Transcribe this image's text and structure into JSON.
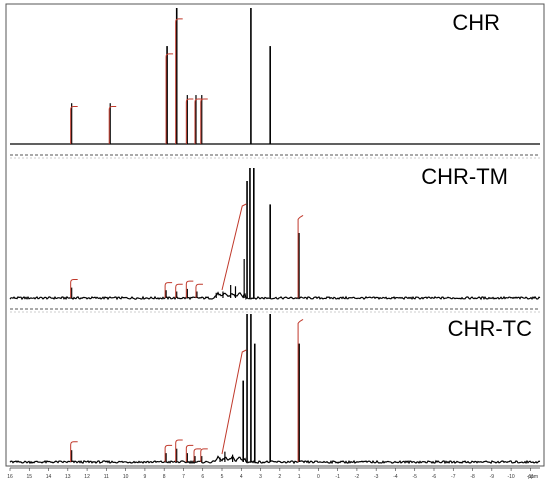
{
  "chart_data": [
    {
      "type": "line",
      "title": "CHR",
      "xlabel": "ppm",
      "xlim": [
        16,
        -11.5
      ],
      "x_ticks": [
        "16",
        "15",
        "14",
        "13",
        "12",
        "11",
        "10",
        "9",
        "8",
        "7",
        "6",
        "5",
        "4",
        "3",
        "2",
        "1",
        "0",
        "-1",
        "-2",
        "-3",
        "-4",
        "-5",
        "-6",
        "-7",
        "-8",
        "-9",
        "-10",
        "-11"
      ],
      "series": [
        {
          "peaks": [
            {
              "ppm": 12.8,
              "height": 0.3
            },
            {
              "ppm": 10.8,
              "height": 0.3
            },
            {
              "ppm": 7.85,
              "height": 0.72
            },
            {
              "ppm": 7.35,
              "height": 1.0
            },
            {
              "ppm": 6.8,
              "height": 0.36
            },
            {
              "ppm": 6.35,
              "height": 0.36
            },
            {
              "ppm": 6.05,
              "height": 0.36
            },
            {
              "ppm": 3.5,
              "height": 1.0
            },
            {
              "ppm": 2.5,
              "height": 0.72
            }
          ]
        }
      ],
      "color": "#000000",
      "integral_color": "#c0392b"
    },
    {
      "type": "line",
      "title": "CHR-TM",
      "xlabel": "ppm",
      "xlim": [
        16,
        -11.5
      ],
      "series": [
        {
          "peaks": [
            {
              "ppm": 12.8,
              "height": 0.08
            },
            {
              "ppm": 7.9,
              "height": 0.06
            },
            {
              "ppm": 7.35,
              "height": 0.05
            },
            {
              "ppm": 6.8,
              "height": 0.07
            },
            {
              "ppm": 6.3,
              "height": 0.05
            },
            {
              "ppm": 5.3,
              "height": 0.04
            },
            {
              "ppm": 4.95,
              "height": 0.05
            },
            {
              "ppm": 4.55,
              "height": 0.1
            },
            {
              "ppm": 4.3,
              "height": 0.09
            },
            {
              "ppm": 3.85,
              "height": 0.3
            },
            {
              "ppm": 3.7,
              "height": 0.9
            },
            {
              "ppm": 3.55,
              "height": 1.0
            },
            {
              "ppm": 3.35,
              "height": 1.0
            },
            {
              "ppm": 2.5,
              "height": 0.72
            },
            {
              "ppm": 1.0,
              "height": 0.5
            }
          ]
        }
      ],
      "color": "#000000",
      "integral_color": "#c0392b"
    },
    {
      "type": "line",
      "title": "CHR-TC",
      "xlabel": "ppm",
      "xlim": [
        16,
        -11.5
      ],
      "series": [
        {
          "peaks": [
            {
              "ppm": 12.8,
              "height": 0.08
            },
            {
              "ppm": 7.9,
              "height": 0.06
            },
            {
              "ppm": 7.35,
              "height": 0.09
            },
            {
              "ppm": 6.8,
              "height": 0.06
            },
            {
              "ppm": 6.4,
              "height": 0.04
            },
            {
              "ppm": 6.05,
              "height": 0.04
            },
            {
              "ppm": 5.1,
              "height": 0.03
            },
            {
              "ppm": 4.85,
              "height": 0.07
            },
            {
              "ppm": 4.45,
              "height": 0.05
            },
            {
              "ppm": 3.9,
              "height": 0.55
            },
            {
              "ppm": 3.7,
              "height": 1.0
            },
            {
              "ppm": 3.5,
              "height": 1.0
            },
            {
              "ppm": 3.3,
              "height": 0.8
            },
            {
              "ppm": 2.5,
              "height": 1.0
            },
            {
              "ppm": 1.0,
              "height": 0.8
            }
          ]
        }
      ],
      "color": "#000000",
      "integral_color": "#c0392b"
    }
  ]
}
